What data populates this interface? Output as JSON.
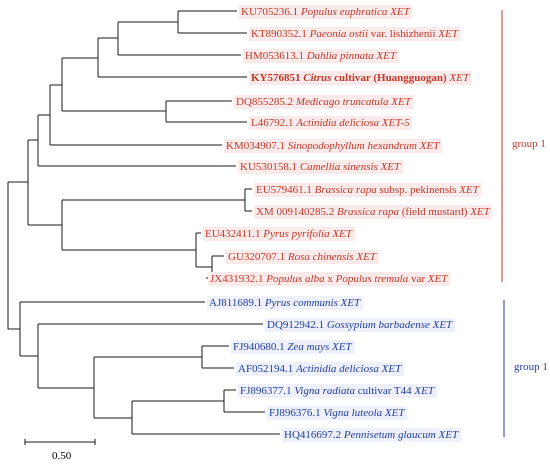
{
  "colors": {
    "group1": "#c0392b",
    "group2": "#1f3f99",
    "branch": "#1a1a1a"
  },
  "groups": [
    {
      "label": "group 1",
      "color": "#c0392b"
    },
    {
      "label": "group 1",
      "color": "#1f3f99"
    }
  ],
  "scale": {
    "label": "0.50",
    "value": 0.5
  },
  "taxa": [
    {
      "acc": "KU705236.1",
      "name": "Populus euphratica",
      "suffix": "XET",
      "group": 0
    },
    {
      "acc": "KT890352.1",
      "name": "Paeonia ostii",
      "mid": "var. lishizhenii",
      "suffix": "XET",
      "group": 0
    },
    {
      "acc": "HM053613.1",
      "name": "Dahlia pinnata",
      "suffix": "XET",
      "group": 0
    },
    {
      "acc": "KY576851",
      "name": "Citrus",
      "mid": "cultivar (Huangguogan)",
      "suffix": "XET",
      "group": 0,
      "bold": true
    },
    {
      "acc": "DQ855285.2",
      "name": "Medicago truncatula",
      "suffix": "XET",
      "group": 0
    },
    {
      "acc": "L46792.1",
      "name": "Actinidia deliciosa",
      "suffix": "XET-5",
      "group": 0
    },
    {
      "acc": "KM034907.1",
      "name": "Sinopodophyllum hexandrum",
      "suffix": "XET",
      "group": 0
    },
    {
      "acc": "KU530158.1",
      "name": "Camellia sinensis",
      "suffix": "XET",
      "group": 0
    },
    {
      "acc": "EU579461.1",
      "name": "Brassica rapa",
      "mid": "subsp. pekinensis",
      "suffix": "XET",
      "group": 0
    },
    {
      "acc": "XM 009140285.2",
      "name": "Brassica rapa",
      "mid": "(field mustard)",
      "suffix": "XET",
      "group": 0
    },
    {
      "acc": "EU432411.1",
      "name": "Pyrus pyrifolia",
      "suffix": "XET",
      "group": 0
    },
    {
      "acc": "GU320707.1",
      "name": "Rosa chinensis",
      "suffix": "XET",
      "group": 0
    },
    {
      "acc": "JX431932.1",
      "name": "Populus alba",
      "mid": "x",
      "name2": "Populus tremula",
      "mid2": "var",
      "suffix": "XET",
      "group": 0
    },
    {
      "acc": "AJ811689.1",
      "name": "Pyrus communis",
      "suffix": "XET",
      "group": 1
    },
    {
      "acc": "DQ912942.1",
      "name": "Gossypium barbadense",
      "suffix": "XET",
      "group": 1
    },
    {
      "acc": "FJ940680.1",
      "name": "Zea mays",
      "suffix": "XET",
      "group": 1
    },
    {
      "acc": "AF052194.1",
      "name": "Actinidia deliciosa",
      "suffix": "XET",
      "group": 1
    },
    {
      "acc": "FJ896377.1",
      "name": "Vigna radiata",
      "mid": "cultivar T44",
      "suffix": "XET",
      "group": 1
    },
    {
      "acc": "FJ896376.1",
      "name": "Vigna luteola",
      "suffix": "XET",
      "group": 1
    },
    {
      "acc": "HQ416697.2",
      "name": "Pennisetum glaucum",
      "suffix": "XET",
      "group": 1
    }
  ]
}
